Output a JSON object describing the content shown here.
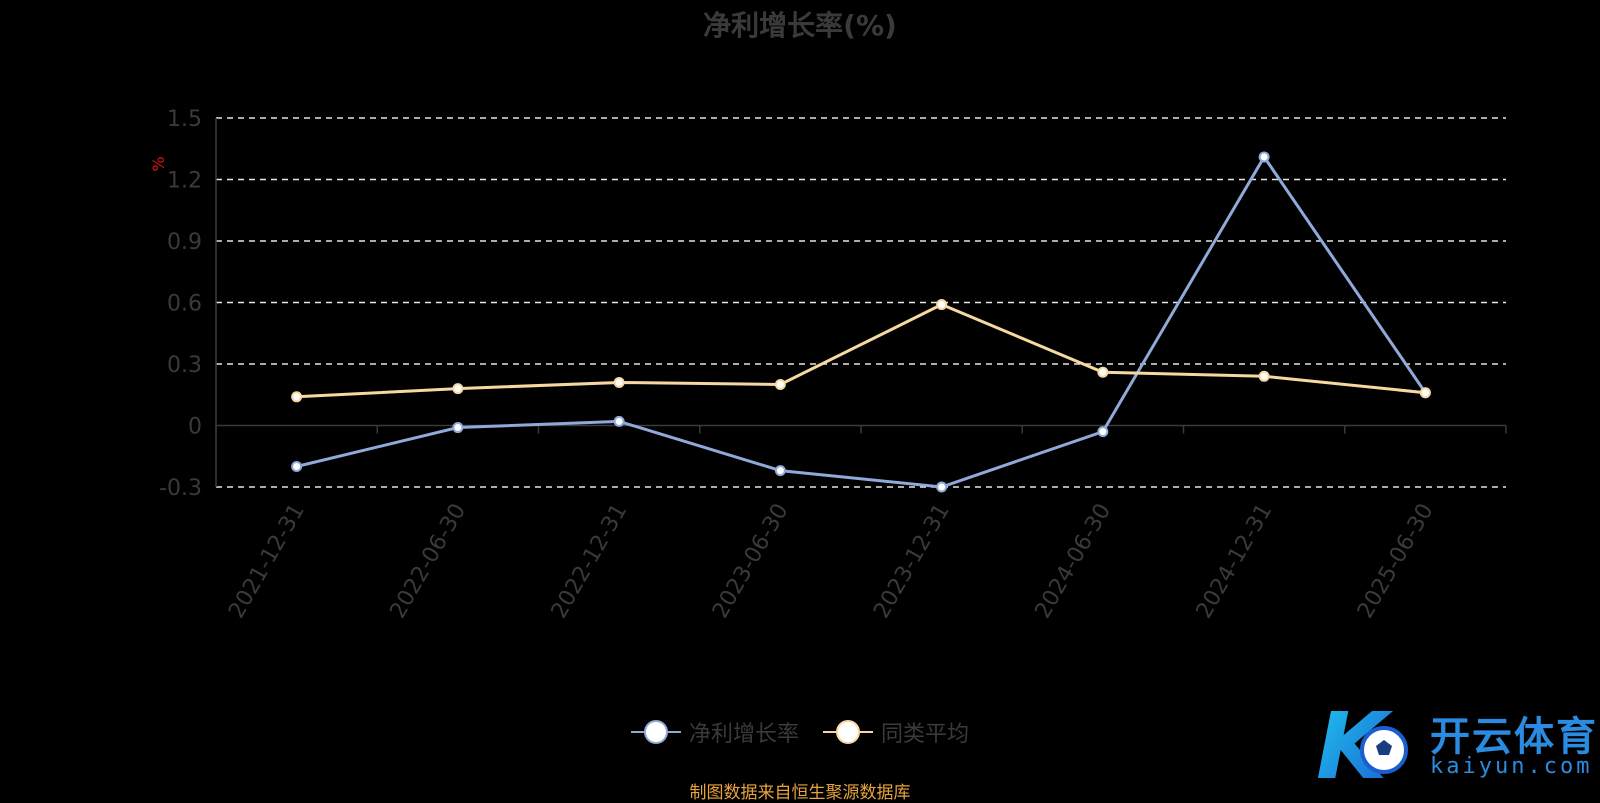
{
  "chart_data": {
    "type": "line",
    "title": "净利增长率(%)",
    "ylabel": "%",
    "categories": [
      "2021-12-31",
      "2022-06-30",
      "2022-12-31",
      "2023-06-30",
      "2023-12-31",
      "2024-06-30",
      "2024-12-31",
      "2025-06-30"
    ],
    "yticks": [
      "1.5",
      "1.2",
      "0.9",
      "0.6",
      "0.3",
      "0",
      "-0.3"
    ],
    "ylim": [
      -0.3,
      1.5
    ],
    "grid": true,
    "legend_position": "bottom",
    "series": [
      {
        "name": "净利增长率",
        "color": "#8fa9d8",
        "values": [
          -0.2,
          -0.01,
          0.02,
          -0.22,
          -0.3,
          -0.03,
          1.31,
          0.16
        ]
      },
      {
        "name": "同类平均",
        "color": "#f5d9a0",
        "values": [
          0.14,
          0.18,
          0.21,
          0.2,
          0.59,
          0.26,
          0.24,
          0.16
        ]
      }
    ]
  },
  "source_note": "制图数据来自恒生聚源数据库",
  "logo": {
    "main_text": "开云体育",
    "sub_text": "kaiyun.com",
    "mark": "K",
    "icon": "soccer-ball-icon"
  }
}
